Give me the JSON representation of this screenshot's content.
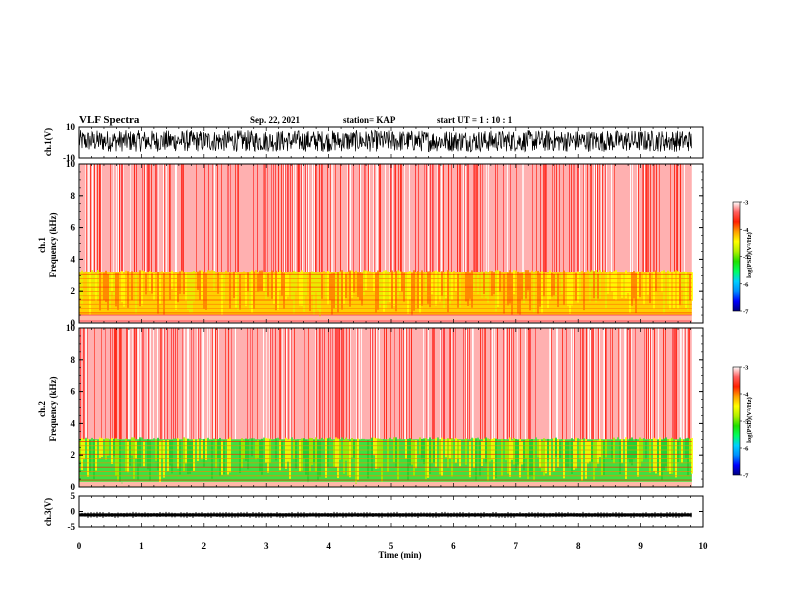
{
  "header": {
    "title": "VLF Spectra",
    "date": "Sep. 22, 2021",
    "station": "station= KAP",
    "start": "start  UT =   1 : 10 : 1"
  },
  "colors": {
    "colormap": [
      "#00007f",
      "#0000ff",
      "#0090ff",
      "#00d0ff",
      "#00ff60",
      "#20e000",
      "#b0f000",
      "#ffff00",
      "#ffa000",
      "#ff2000",
      "#ff6060",
      "#ffffff"
    ],
    "trace": "#000000"
  },
  "chart_data": [
    {
      "type": "line",
      "panel": "ch1-waveform",
      "ylabel": "ch.1(V)",
      "ylim": [
        -10,
        10
      ],
      "yticks": [
        10,
        -10
      ],
      "note_values": "dense noisy waveform, roughly -6 to +8 V"
    },
    {
      "type": "heatmap",
      "panel": "ch1-spectrogram",
      "ylabel_line1": "ch.1",
      "ylabel_line2": "Frequency (kHz)",
      "ylim": [
        0,
        10
      ],
      "yticks": [
        0,
        2,
        4,
        6,
        8,
        10
      ],
      "colorbar": {
        "label": "log(PSD)(V²/Hz)",
        "ticks": [
          -3,
          -4,
          -5,
          -6,
          -7
        ],
        "range": [
          -7,
          -3
        ]
      },
      "bands_khz": {
        "high_power_band": [
          0.5,
          3.2
        ],
        "background_above": [
          3.2,
          10
        ]
      }
    },
    {
      "type": "heatmap",
      "panel": "ch2-spectrogram",
      "ylabel_line1": "ch.2",
      "ylabel_line2": "Frequency (kHz)",
      "ylim": [
        0,
        10
      ],
      "yticks": [
        0,
        2,
        4,
        6,
        8,
        10
      ],
      "colorbar": {
        "label": "log(PSD)(V²/Hz)",
        "ticks": [
          -3,
          -4,
          -5,
          -6,
          -7
        ],
        "range": [
          -7,
          -3
        ]
      },
      "bands_khz": {
        "high_power_band": [
          0.3,
          3.0
        ],
        "background_above": [
          3.0,
          10
        ]
      }
    },
    {
      "type": "line",
      "panel": "ch3-waveform",
      "ylabel": "ch.3(V)",
      "ylim": [
        -5,
        5
      ],
      "yticks": [
        5,
        0,
        -5
      ],
      "note_values": "narrow thick band around -1 V"
    }
  ],
  "x_axis": {
    "label": "Time (min)",
    "xlim": [
      0,
      10
    ],
    "ticks": [
      0,
      1,
      2,
      3,
      4,
      5,
      6,
      7,
      8,
      9,
      10
    ],
    "data_end_min": 9.82
  }
}
